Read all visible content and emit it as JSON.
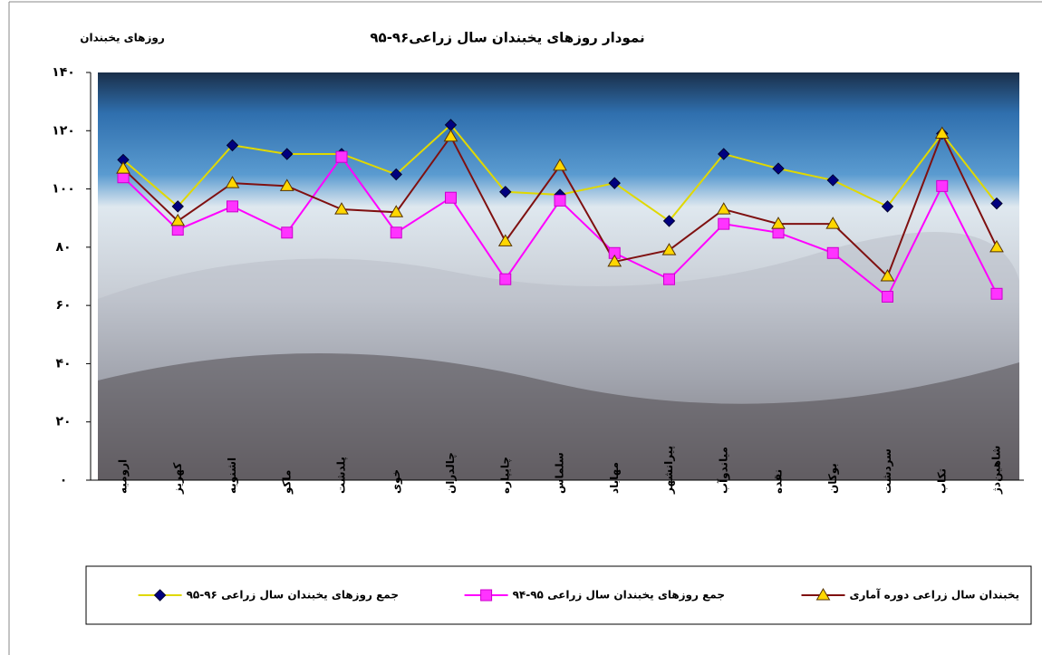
{
  "chart_data": {
    "type": "line",
    "title": "نمودار روزهای یخبندان سال زراعی۹۶-۹۵",
    "y_label": "روزهای یخبندان",
    "categories": [
      "ارومیه",
      "کهریز",
      "اشنویه",
      "ماکو",
      "پلدشت",
      "خوی",
      "چالدران",
      "چایپاره",
      "سلماس",
      "مهاباد",
      "پیرانشهر",
      "میاندوآب",
      "نقده",
      "بوکان",
      "سردشت",
      "تکاب",
      "شاهین‌دژ"
    ],
    "series": [
      {
        "name": "جمع روزهای یخبندان سال زراعی ۹۶-۹۵",
        "color": "#e0d800",
        "marker": "diamond",
        "marker_color": "#00007f",
        "values": [
          110,
          94,
          115,
          112,
          112,
          105,
          122,
          99,
          98,
          102,
          89,
          112,
          107,
          103,
          94,
          119,
          95
        ]
      },
      {
        "name": "جمع روزهای یخبندان سال زراعی ۹۵-۹۴",
        "color": "#ff00ff",
        "marker": "square",
        "marker_color": "#ff33ff",
        "values": [
          104,
          86,
          94,
          85,
          111,
          85,
          97,
          69,
          96,
          78,
          69,
          88,
          85,
          78,
          63,
          101,
          64
        ]
      },
      {
        "name": "یخبندان سال زراعی دوره آماری",
        "color": "#7f1010",
        "marker": "triangle",
        "marker_color": "#ffd700",
        "values": [
          107,
          89,
          102,
          101,
          93,
          92,
          118,
          82,
          108,
          75,
          79,
          93,
          88,
          88,
          70,
          119,
          80
        ]
      }
    ],
    "ylim": [
      0,
      140
    ],
    "yticks": [
      {
        "value": 0,
        "label": "۰"
      },
      {
        "value": 20,
        "label": "۲۰"
      },
      {
        "value": 40,
        "label": "۴۰"
      },
      {
        "value": 60,
        "label": "۶۰"
      },
      {
        "value": 80,
        "label": "۸۰"
      },
      {
        "value": 100,
        "label": "۱۰۰"
      },
      {
        "value": 120,
        "label": "۱۲۰"
      },
      {
        "value": 140,
        "label": "۱۴۰"
      }
    ]
  }
}
